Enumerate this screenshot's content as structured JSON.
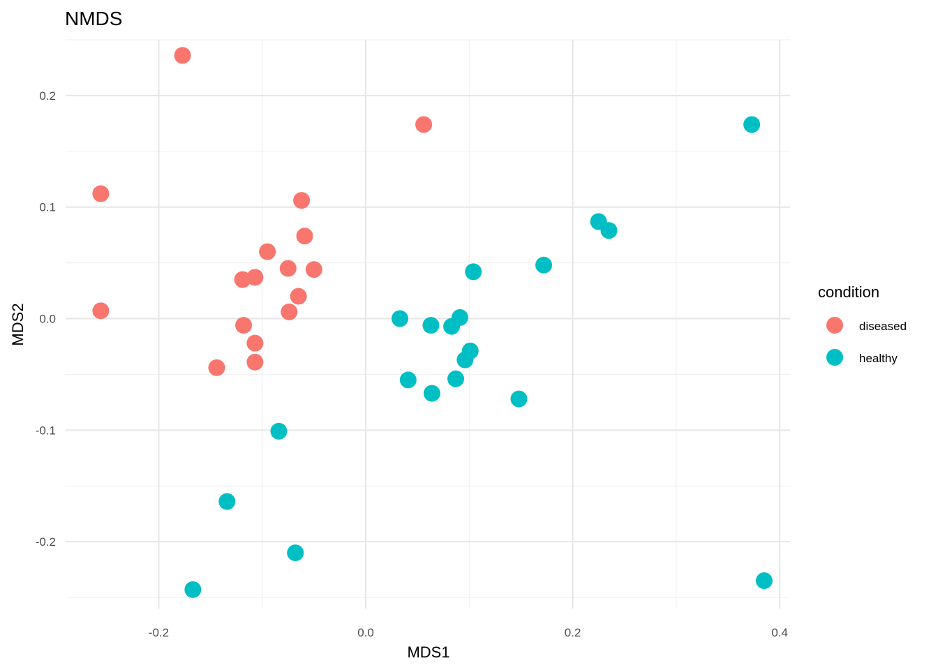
{
  "chart_data": {
    "type": "scatter",
    "title": "NMDS",
    "xlabel": "MDS1",
    "ylabel": "MDS2",
    "xlim": [
      -0.29,
      0.41
    ],
    "ylim": [
      -0.26,
      0.25
    ],
    "x_ticks": [
      -0.2,
      0.0,
      0.2,
      0.4
    ],
    "x_tick_labels": [
      "-0.2",
      "0.0",
      "0.2",
      "0.4"
    ],
    "y_ticks": [
      -0.2,
      -0.1,
      0.0,
      0.1,
      0.2
    ],
    "y_tick_labels": [
      "-0.2",
      "-0.1",
      "0.0",
      "0.1",
      "0.2"
    ],
    "grid": true,
    "legend": {
      "title": "condition",
      "position": "right",
      "entries": [
        "diseased",
        "healthy"
      ]
    },
    "series": [
      {
        "name": "diseased",
        "color": "#F8766D",
        "points": [
          [
            -0.177,
            0.236
          ],
          [
            0.056,
            0.174
          ],
          [
            -0.256,
            0.112
          ],
          [
            -0.062,
            0.106
          ],
          [
            -0.059,
            0.074
          ],
          [
            -0.095,
            0.06
          ],
          [
            -0.075,
            0.045
          ],
          [
            -0.05,
            0.044
          ],
          [
            -0.107,
            0.037
          ],
          [
            -0.119,
            0.035
          ],
          [
            -0.065,
            0.02
          ],
          [
            -0.256,
            0.007
          ],
          [
            -0.074,
            0.006
          ],
          [
            -0.118,
            -0.006
          ],
          [
            -0.107,
            -0.022
          ],
          [
            -0.107,
            -0.039
          ],
          [
            -0.144,
            -0.044
          ]
        ]
      },
      {
        "name": "healthy",
        "color": "#00BFC4",
        "points": [
          [
            0.373,
            0.174
          ],
          [
            0.225,
            0.087
          ],
          [
            0.235,
            0.079
          ],
          [
            0.172,
            0.048
          ],
          [
            0.104,
            0.042
          ],
          [
            0.033,
            0.0
          ],
          [
            0.091,
            0.001
          ],
          [
            0.063,
            -0.006
          ],
          [
            0.083,
            -0.007
          ],
          [
            0.101,
            -0.029
          ],
          [
            0.096,
            -0.037
          ],
          [
            0.041,
            -0.055
          ],
          [
            0.087,
            -0.054
          ],
          [
            0.064,
            -0.067
          ],
          [
            0.148,
            -0.072
          ],
          [
            -0.084,
            -0.101
          ],
          [
            -0.134,
            -0.164
          ],
          [
            -0.068,
            -0.21
          ],
          [
            -0.167,
            -0.243
          ],
          [
            0.385,
            -0.235
          ]
        ]
      }
    ]
  }
}
